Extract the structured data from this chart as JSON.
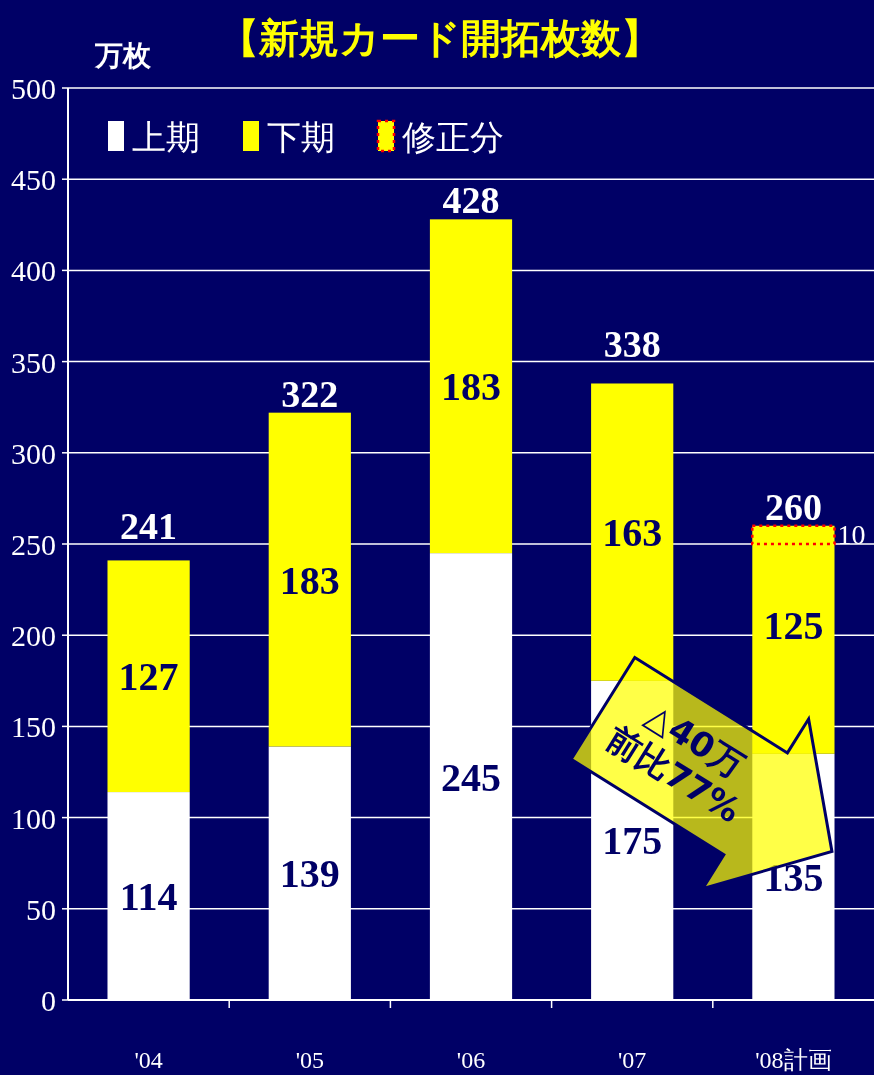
{
  "chart_data": {
    "type": "bar",
    "stacked": true,
    "title": "【新規カード開拓枚数】",
    "ylabel": "万枚",
    "categories": [
      "'04",
      "'05",
      "'06",
      "'07",
      "'08計画"
    ],
    "series": [
      {
        "name": "上期",
        "color": "#ffffff",
        "values": [
          114,
          139,
          245,
          175,
          135
        ],
        "value_labels": [
          "114",
          "139",
          "245",
          "175",
          "135"
        ]
      },
      {
        "name": "下期",
        "color": "#ffff00",
        "values": [
          127,
          183,
          183,
          163,
          115
        ],
        "value_labels": [
          "127",
          "183",
          "183",
          "163",
          null
        ]
      },
      {
        "name": "修正分",
        "color": "#ffff00",
        "line_style": "dotted",
        "values": [
          null,
          null,
          null,
          null,
          10
        ],
        "value_labels": [
          null,
          null,
          null,
          null,
          "10"
        ]
      }
    ],
    "totals": [
      "241",
      "322",
      "428",
      "338",
      "260"
    ],
    "ylim": [
      0,
      500
    ],
    "yticks": [
      0,
      50,
      100,
      150,
      200,
      250,
      300,
      350,
      400,
      450,
      500
    ],
    "grid": "y",
    "legend": "top left",
    "annotations": [
      "125",
      "△40万\n前比77%"
    ]
  }
}
